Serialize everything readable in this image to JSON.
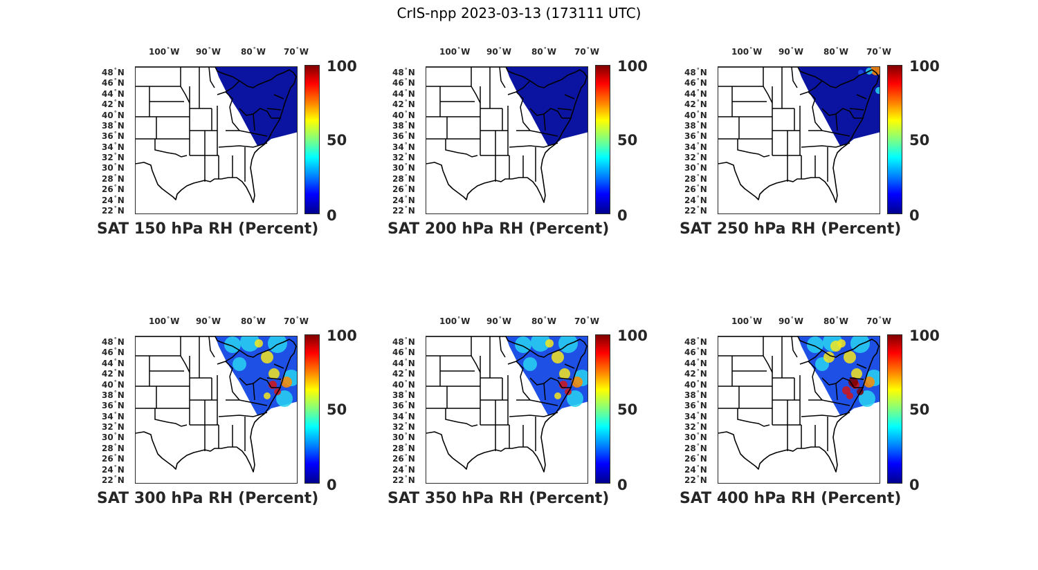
{
  "title": "CrIS-npp 2023-03-13 (173111 UTC)",
  "lat_ticks": [
    "48",
    "46",
    "44",
    "42",
    "40",
    "38",
    "36",
    "34",
    "32",
    "30",
    "28",
    "26",
    "24",
    "22"
  ],
  "lat_hemisphere": "N",
  "lon_ticks": [
    "100",
    "90",
    "80",
    "70"
  ],
  "lon_hemisphere": "W",
  "colorbar": {
    "max": "100",
    "mid": "50",
    "min": "0",
    "colormap": "jet"
  },
  "panels": [
    {
      "caption": "SAT 150 hPa RH (Percent)",
      "field": "dry"
    },
    {
      "caption": "SAT 200 hPa RH (Percent)",
      "field": "dry"
    },
    {
      "caption": "SAT 250 hPa RH (Percent)",
      "field": "mostly-dry-moist-northeast"
    },
    {
      "caption": "SAT 300 hPa RH (Percent)",
      "field": "moist-band-east"
    },
    {
      "caption": "SAT 350 hPa RH (Percent)",
      "field": "moist-band-east"
    },
    {
      "caption": "SAT 400 hPa RH (Percent)",
      "field": "very-moist-east"
    }
  ],
  "colors": {
    "dry": "#0a14a0",
    "mid_blue": "#1e50e6",
    "cyan": "#28d2f0",
    "yellow": "#f5e61e",
    "orange": "#ff8c00",
    "red": "#d21414",
    "dark_red": "#800000"
  }
}
